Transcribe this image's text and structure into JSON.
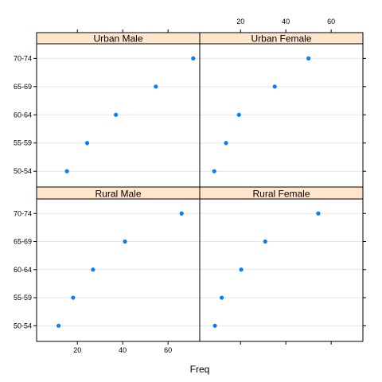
{
  "chart_data": {
    "type": "scatter",
    "title": "",
    "xlabel": "Freq",
    "ylabel": "",
    "xlim": [
      2,
      74
    ],
    "x_ticks": [
      20,
      40,
      60
    ],
    "categories": [
      "50-54",
      "55-59",
      "60-64",
      "65-69",
      "70-74"
    ],
    "grid": "horizontal reference lines",
    "legend": "none",
    "panels": [
      {
        "name": "Urban Male",
        "values": [
          15.4,
          24.3,
          37.0,
          54.6,
          71.1
        ]
      },
      {
        "name": "Urban Female",
        "values": [
          8.4,
          13.6,
          19.3,
          35.1,
          50.0
        ]
      },
      {
        "name": "Rural Male",
        "values": [
          11.7,
          18.1,
          26.9,
          41.0,
          66.0
        ]
      },
      {
        "name": "Rural Female",
        "values": [
          8.7,
          11.7,
          20.3,
          30.9,
          54.3
        ]
      }
    ]
  },
  "colors": {
    "point": "#0080ff",
    "strip_background": "#ffe5cc",
    "reference_line": "#e6e6e6",
    "frame": "#000000"
  }
}
